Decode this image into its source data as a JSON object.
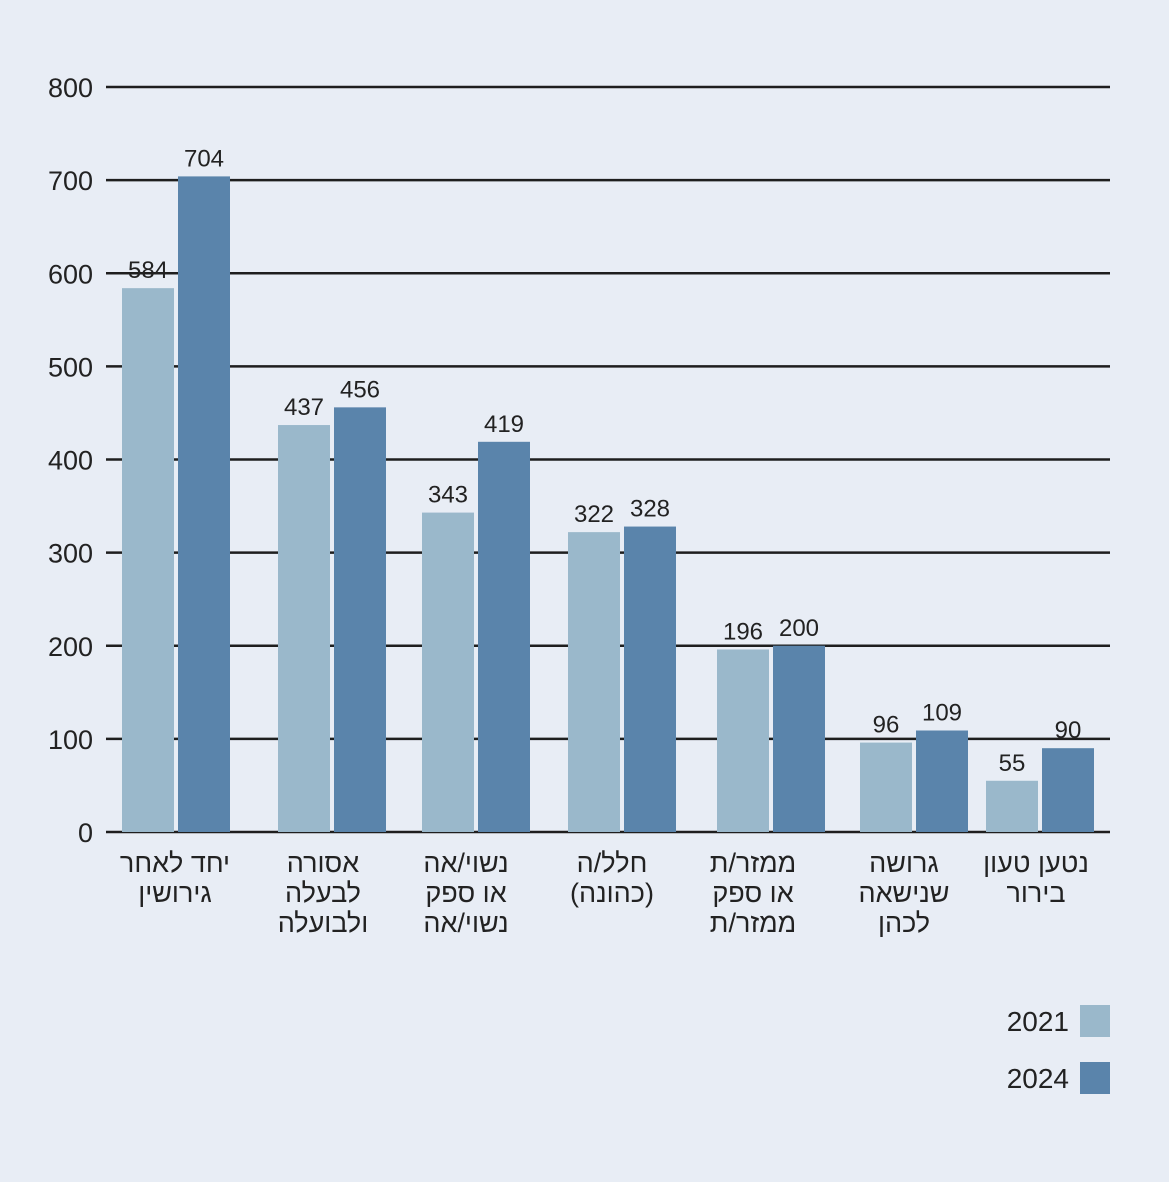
{
  "chart_data": {
    "type": "bar",
    "categories": [
      [
        "יחד לאחר",
        "גירושין"
      ],
      [
        "אסורה",
        "לבעלה",
        "ולבועלה"
      ],
      [
        "נשוי/אה",
        "או ספק",
        "נשוי/אה"
      ],
      [
        "חלל/ה",
        "(כהונה)"
      ],
      [
        "ממזר/ת",
        "או ספק",
        "ממזר/ת"
      ],
      [
        "גרושה",
        "שנישאה",
        "לכהן"
      ],
      [
        "נטען טעון",
        "בירור"
      ]
    ],
    "series": [
      {
        "name": "2021",
        "color": "#9ab8cb",
        "values": [
          584,
          437,
          343,
          322,
          196,
          96,
          55
        ]
      },
      {
        "name": "2024",
        "color": "#5a84ab",
        "values": [
          704,
          456,
          419,
          328,
          200,
          109,
          90
        ]
      }
    ],
    "ylim": [
      0,
      800
    ],
    "yticks": [
      0,
      100,
      200,
      300,
      400,
      500,
      600,
      700,
      800
    ],
    "grid": true,
    "legend_position": "bottom-right"
  }
}
